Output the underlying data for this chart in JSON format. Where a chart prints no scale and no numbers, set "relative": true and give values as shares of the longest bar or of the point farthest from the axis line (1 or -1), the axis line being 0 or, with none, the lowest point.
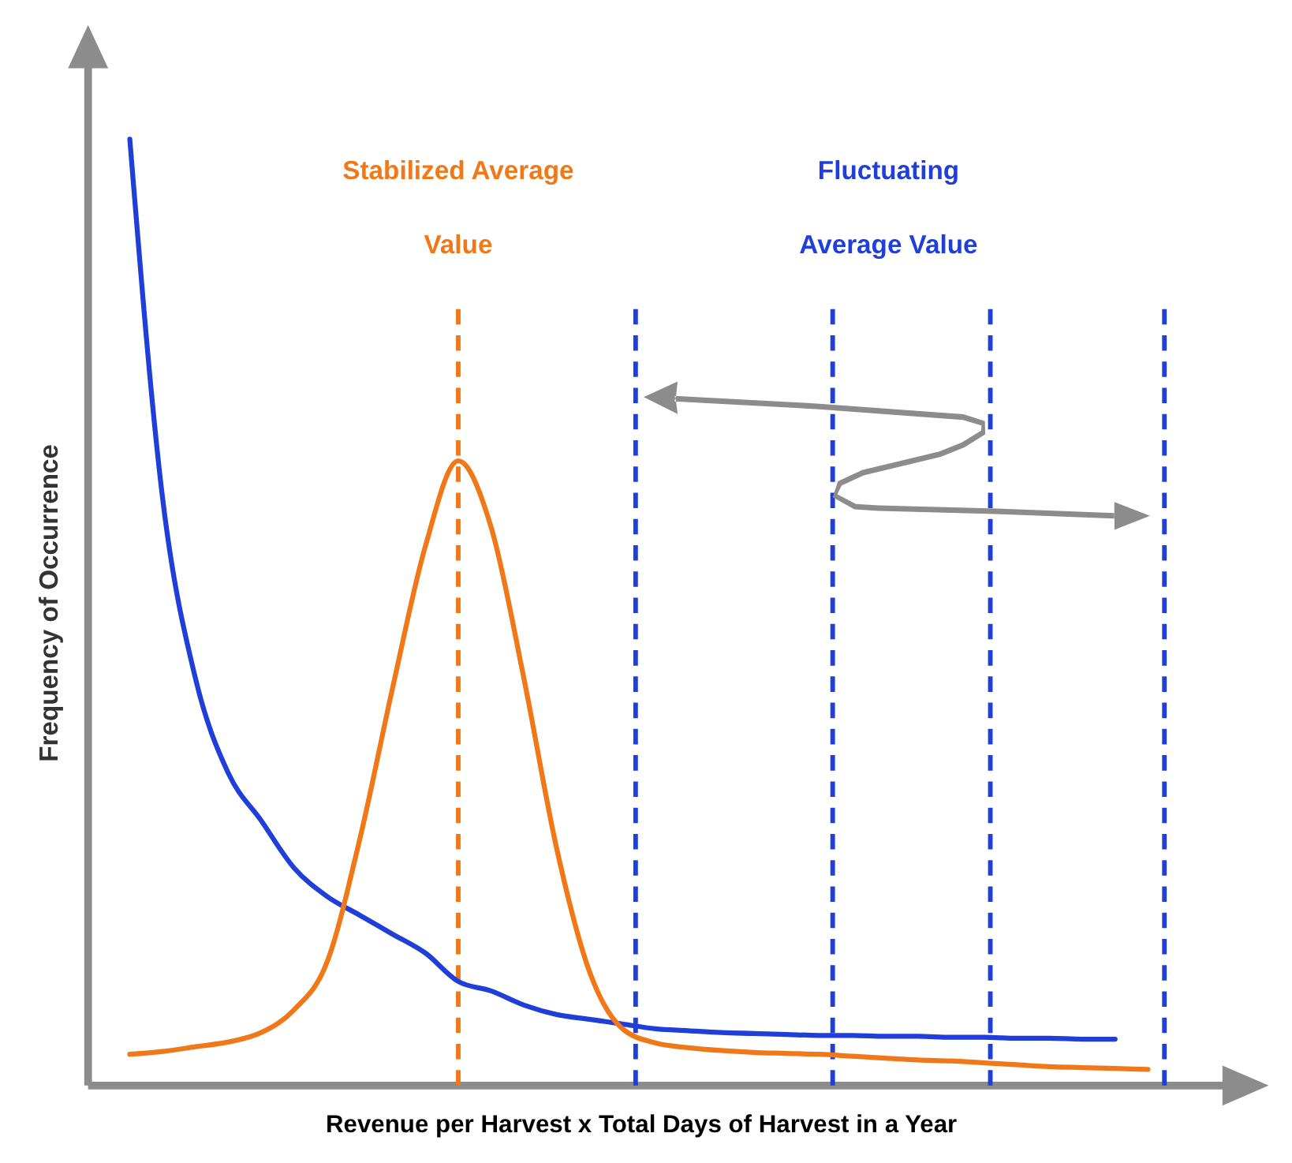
{
  "chart_data": {
    "type": "line",
    "relative": true,
    "xlabel": "Revenue per Harvest x Total Days of Harvest in a Year",
    "ylabel": "Frequency of Occurrence",
    "categories": [
      null,
      null,
      null,
      null,
      null,
      null,
      null,
      null,
      null,
      null,
      null,
      null,
      null,
      null,
      null,
      null,
      null,
      null,
      null,
      null,
      null,
      null,
      null,
      null,
      null,
      null,
      null,
      null,
      null,
      null,
      null,
      null
    ],
    "series": [
      {
        "color": "#1f3fd8",
        "values": [
          1.0,
          0.62,
          0.43,
          0.33,
          0.28,
          0.23,
          0.2,
          0.18,
          0.16,
          0.14,
          0.11,
          0.1,
          0.085,
          0.075,
          0.07,
          0.065,
          0.06,
          0.058,
          0.056,
          0.055,
          0.054,
          0.053,
          0.053,
          0.052,
          0.052,
          0.051,
          0.051,
          0.05,
          0.05,
          0.049,
          0.049,
          null
        ]
      },
      {
        "color": "#f07818",
        "values": [
          0.033,
          0.036,
          0.041,
          0.046,
          0.056,
          0.08,
          0.13,
          0.26,
          0.42,
          0.57,
          0.66,
          0.59,
          0.43,
          0.25,
          0.12,
          0.06,
          0.045,
          0.04,
          0.037,
          0.035,
          0.034,
          0.033,
          0.031,
          0.029,
          0.027,
          0.026,
          0.024,
          0.022,
          0.02,
          0.019,
          0.018,
          0.017
        ]
      }
    ],
    "annotations": [
      "Stabilized Average Value",
      "Fluctuating Average Value"
    ],
    "line_style": "solid"
  }
}
